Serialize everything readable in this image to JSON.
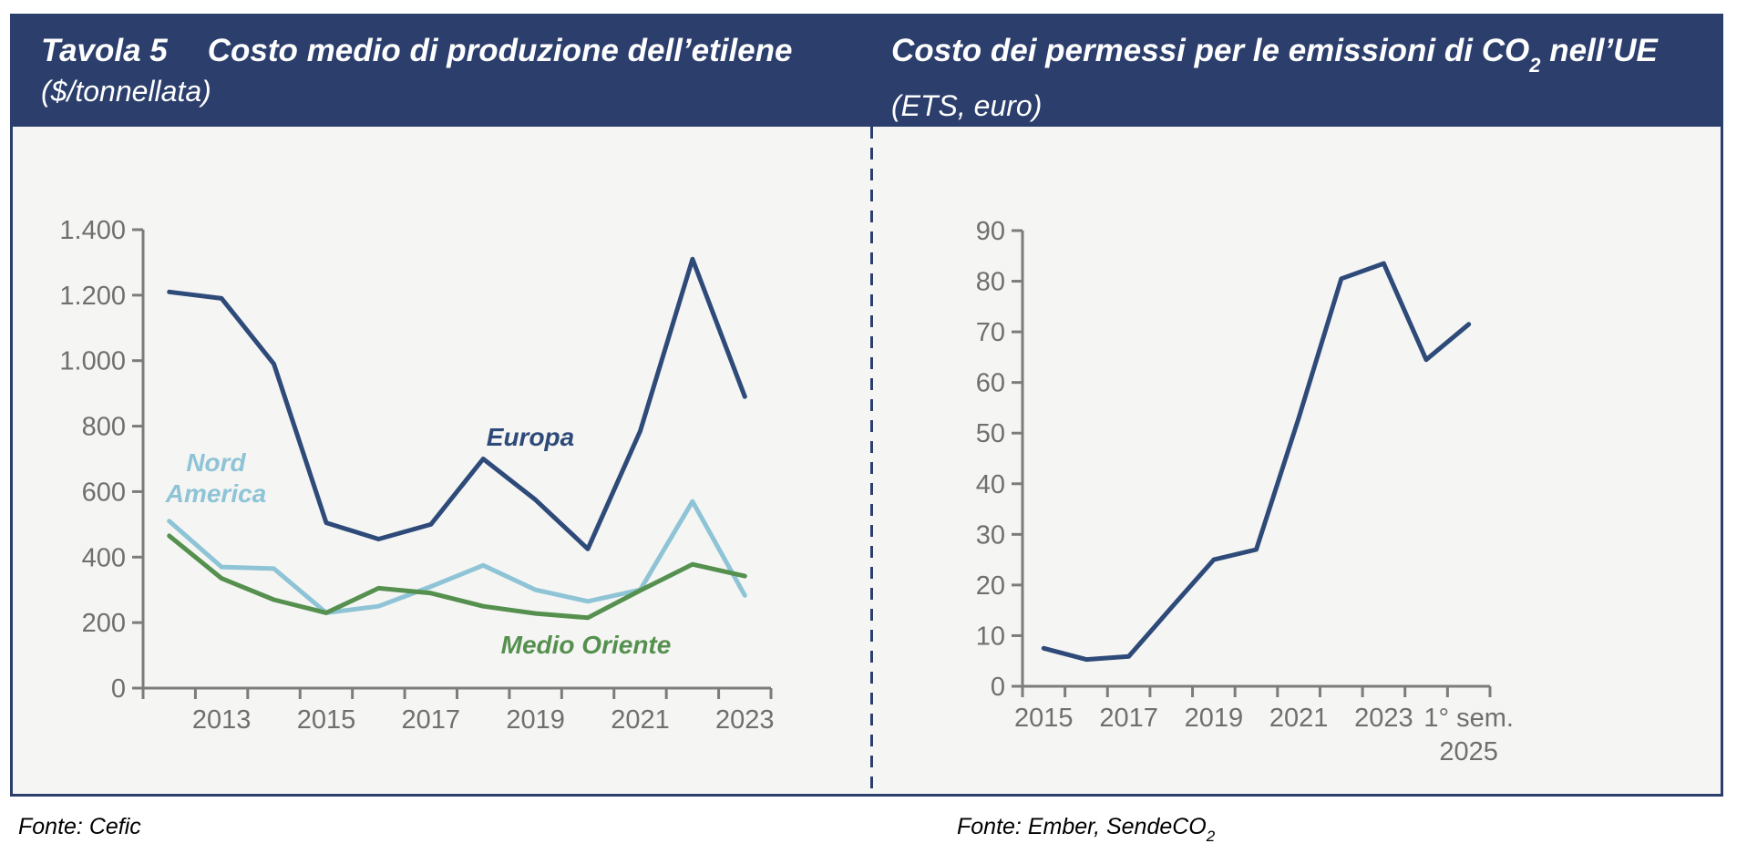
{
  "header": {
    "left": {
      "tag": "Tavola 5",
      "title": "Costo medio di produzione dell’etilene",
      "subtitle": "($/tonnellata)"
    },
    "right": {
      "title_prefix": "Costo dei permessi per le emissioni di CO",
      "title_sub": "2",
      "title_suffix": " nell’UE",
      "subtitle": "(ETS, euro)"
    }
  },
  "footer": {
    "left_source": "Fonte: Cefic",
    "right_source_prefix": "Fonte: Ember, SendeCO",
    "right_source_sub": "2"
  },
  "colors": {
    "header_bg": "#2b3e6c",
    "panel_bg": "#f5f5f4",
    "border": "#2b3e6c",
    "axis": "#7c7c7c",
    "tick_text": "#6f6f6f",
    "europa": "#2e4a78",
    "nord_america": "#8ec4d6",
    "medio_oriente": "#55904e"
  },
  "chart_data": [
    {
      "type": "line",
      "title": "Costo medio di produzione dell’etilene ($/tonnellata)",
      "categories": [
        "2012",
        "2013",
        "2014",
        "2015",
        "2016",
        "2017",
        "2018",
        "2019",
        "2020",
        "2021",
        "2022",
        "2023"
      ],
      "series": [
        {
          "name": "Europa",
          "color": "#2e4a78",
          "values": [
            1210,
            1190,
            990,
            505,
            455,
            500,
            700,
            575,
            425,
            785,
            1310,
            890
          ]
        },
        {
          "name": "Nord America",
          "color": "#8ec4d6",
          "label_lines": [
            "Nord",
            "America"
          ],
          "values": [
            510,
            370,
            365,
            230,
            250,
            310,
            375,
            300,
            265,
            300,
            570,
            283
          ]
        },
        {
          "name": "Medio Oriente",
          "color": "#55904e",
          "values": [
            465,
            335,
            270,
            230,
            305,
            290,
            250,
            228,
            215,
            298,
            378,
            342
          ]
        }
      ],
      "ylim": [
        0,
        1400
      ],
      "ytick_step": 200,
      "ytick_labels": [
        "0",
        "200",
        "400",
        "600",
        "800",
        "1.000",
        "1.200",
        "1.400"
      ],
      "xtick_labels": [
        {
          "at": 1,
          "lines": [
            "2013"
          ]
        },
        {
          "at": 3,
          "lines": [
            "2015"
          ]
        },
        {
          "at": 5,
          "lines": [
            "2017"
          ]
        },
        {
          "at": 7,
          "lines": [
            "2019"
          ]
        },
        {
          "at": 9,
          "lines": [
            "2021"
          ]
        },
        {
          "at": 11,
          "lines": [
            "2023"
          ]
        }
      ],
      "grid": false,
      "legend": "inline-labels"
    },
    {
      "type": "line",
      "title": "Costo dei permessi per le emissioni di CO2 nell’UE (ETS, euro)",
      "categories": [
        "2015",
        "2016",
        "2017",
        "2018",
        "2019",
        "2020",
        "2021",
        "2022",
        "2023",
        "2024",
        "1° sem. 2025"
      ],
      "series": [
        {
          "name": "ETS",
          "color": "#2e4a78",
          "values": [
            7.5,
            5.3,
            5.9,
            15.5,
            25,
            27,
            53,
            80.5,
            83.5,
            64.5,
            71.5
          ]
        }
      ],
      "ylim": [
        0,
        90
      ],
      "ytick_step": 10,
      "ytick_labels": [
        "0",
        "10",
        "20",
        "30",
        "40",
        "50",
        "60",
        "70",
        "80",
        "90"
      ],
      "xtick_labels": [
        {
          "at": 0,
          "lines": [
            "2015"
          ]
        },
        {
          "at": 2,
          "lines": [
            "2017"
          ]
        },
        {
          "at": 4,
          "lines": [
            "2019"
          ]
        },
        {
          "at": 6,
          "lines": [
            "2021"
          ]
        },
        {
          "at": 8,
          "lines": [
            "2023"
          ]
        },
        {
          "at": 10,
          "lines": [
            "1° sem.",
            "2025"
          ]
        }
      ],
      "grid": false,
      "legend": "none"
    }
  ]
}
